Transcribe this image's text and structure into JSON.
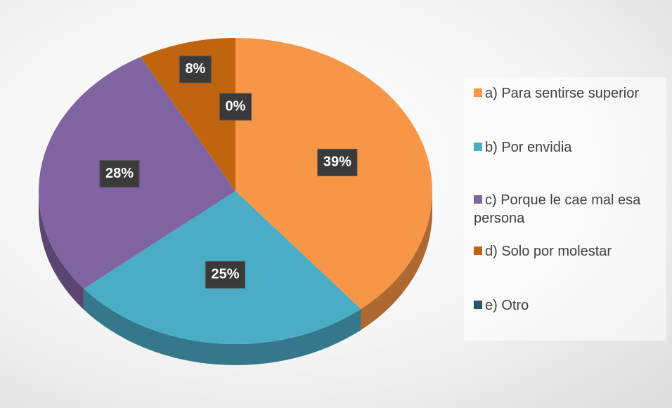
{
  "chart_data": {
    "type": "pie",
    "categories": [
      "a) Para sentirse superior",
      "b) Por envidia",
      "c) Porque le cae mal esa persona",
      "d) Solo por molestar",
      "e) Otro"
    ],
    "values": [
      39,
      25,
      28,
      8,
      0
    ],
    "value_labels": [
      "39%",
      "25%",
      "28%",
      "8%",
      "0%"
    ],
    "colors": [
      "#f79646",
      "#4bacc6",
      "#8064a2",
      "#c0640f",
      "#215968"
    ],
    "legend": "right"
  }
}
